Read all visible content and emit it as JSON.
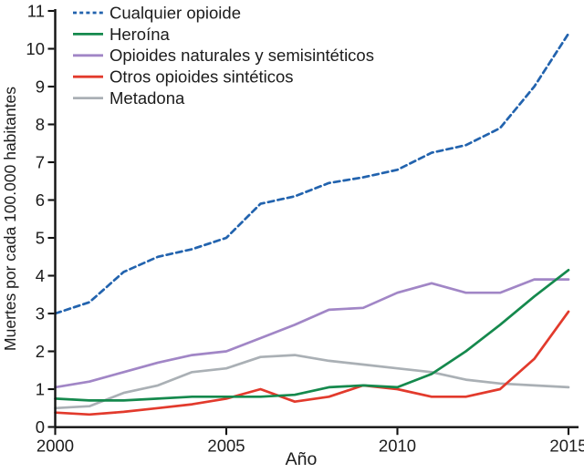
{
  "chart_data": {
    "type": "line",
    "title": "",
    "xlabel": "Año",
    "ylabel": "Muertes por cada 100.000 habitantes",
    "x": [
      2000,
      2001,
      2002,
      2003,
      2004,
      2005,
      2006,
      2007,
      2008,
      2009,
      2010,
      2011,
      2012,
      2013,
      2014,
      2015
    ],
    "x_ticks": [
      2000,
      2005,
      2010,
      2015
    ],
    "y_ticks": [
      0,
      1,
      2,
      3,
      4,
      5,
      6,
      7,
      8,
      9,
      10,
      11
    ],
    "xlim": [
      2000,
      2015
    ],
    "ylim": [
      0,
      11
    ],
    "grid": false,
    "legend_position": "top-left",
    "axis_color": "#111111",
    "series": [
      {
        "name": "Cualquier opioide",
        "color": "#2263ae",
        "style": "dashed",
        "values": [
          3.0,
          3.3,
          4.1,
          4.5,
          4.7,
          5.0,
          5.9,
          6.1,
          6.45,
          6.6,
          6.8,
          7.25,
          7.45,
          7.9,
          9.0,
          10.4
        ]
      },
      {
        "name": "Opioides naturales y semisintéticos",
        "color": "#a186c6",
        "style": "solid",
        "values": [
          1.05,
          1.2,
          1.45,
          1.7,
          1.9,
          2.0,
          2.35,
          2.7,
          3.1,
          3.15,
          3.55,
          3.8,
          3.55,
          3.55,
          3.9,
          3.9
        ]
      },
      {
        "name": "Metadona",
        "color": "#aab0b5",
        "style": "solid",
        "values": [
          0.5,
          0.55,
          0.9,
          1.1,
          1.45,
          1.55,
          1.85,
          1.9,
          1.75,
          1.65,
          1.55,
          1.45,
          1.25,
          1.15,
          1.1,
          1.05
        ]
      },
      {
        "name": "Otros opioides sintéticos",
        "color": "#e23a2c",
        "style": "solid",
        "values": [
          0.38,
          0.33,
          0.4,
          0.5,
          0.6,
          0.75,
          1.0,
          0.67,
          0.8,
          1.1,
          1.0,
          0.8,
          0.8,
          1.0,
          1.8,
          3.05
        ]
      },
      {
        "name": "Heroína",
        "color": "#15894d",
        "style": "solid",
        "values": [
          0.75,
          0.7,
          0.7,
          0.75,
          0.8,
          0.8,
          0.8,
          0.85,
          1.05,
          1.1,
          1.05,
          1.4,
          2.0,
          2.7,
          3.45,
          4.15
        ]
      }
    ],
    "legend_order": [
      "Cualquier opioide",
      "Heroína",
      "Opioides naturales y semisintéticos",
      "Otros opioides sintéticos",
      "Metadona"
    ]
  }
}
